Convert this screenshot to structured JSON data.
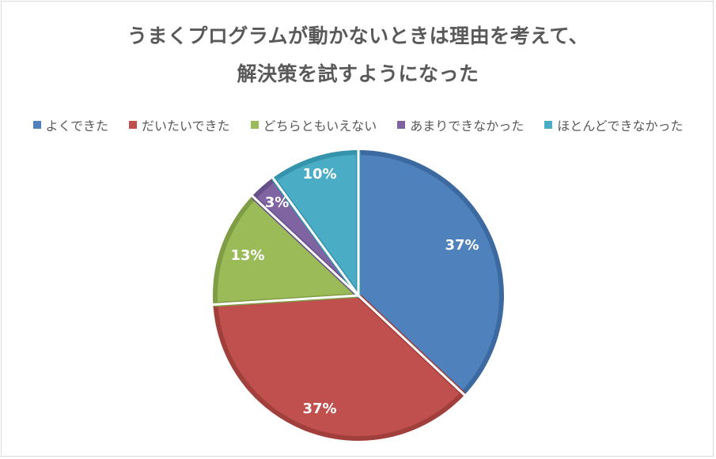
{
  "chart_data": {
    "type": "pie",
    "title_lines": [
      "うまくプログラムが動かないときは理由を考えて、",
      "解決策を試すようになった"
    ],
    "categories": [
      "よくできた",
      "だいたいできた",
      "どちらともいえない",
      "あまりできなかった",
      "ほとんどできなかった"
    ],
    "values": [
      37,
      37,
      13,
      3,
      10
    ],
    "value_labels": [
      "37%",
      "37%",
      "13%",
      "3%",
      "10%"
    ],
    "colors": [
      "#4f81bd",
      "#c0504d",
      "#9bbb59",
      "#8064a2",
      "#4bacc6"
    ],
    "stroke_colors": [
      "#3c6aa0",
      "#a13f3c",
      "#7f9d45",
      "#674f87",
      "#3593ab"
    ],
    "legend_position": "top",
    "start_angle_deg": 0,
    "direction": "clockwise"
  }
}
